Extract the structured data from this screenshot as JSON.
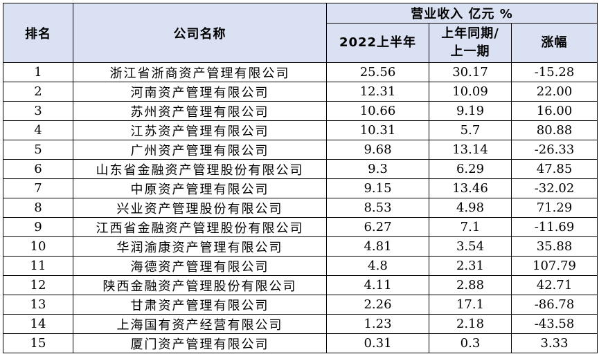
{
  "header": {
    "rank": "排名",
    "company": "公司名称",
    "revenue_group": "营业收入 亿元 %",
    "col_2022h1": "2022上半年",
    "col_prev_line1": "上年同期/",
    "col_prev_line2": "上一期",
    "col_change": "涨幅"
  },
  "rows": [
    {
      "rank": "1",
      "company": "浙江省浙商资产管理有限公司",
      "h1_2022": "25.56",
      "prev": "30.17",
      "change": "-15.28"
    },
    {
      "rank": "2",
      "company": "河南资产管理有限公司",
      "h1_2022": "12.31",
      "prev": "10.09",
      "change": "22.00"
    },
    {
      "rank": "3",
      "company": "苏州资产管理有限公司",
      "h1_2022": "10.66",
      "prev": "9.19",
      "change": "16.00"
    },
    {
      "rank": "4",
      "company": "江苏资产管理有限公司",
      "h1_2022": "10.31",
      "prev": "5.7",
      "change": "80.88"
    },
    {
      "rank": "5",
      "company": "广州资产管理有限公司",
      "h1_2022": "9.68",
      "prev": "13.14",
      "change": "-26.33"
    },
    {
      "rank": "6",
      "company": "山东省金融资产管理股份有限公司",
      "h1_2022": "9.3",
      "prev": "6.29",
      "change": "47.85"
    },
    {
      "rank": "7",
      "company": "中原资产管理有限公司",
      "h1_2022": "9.15",
      "prev": "13.46",
      "change": "-32.02"
    },
    {
      "rank": "8",
      "company": "兴业资产管理股份有限公司",
      "h1_2022": "8.53",
      "prev": "4.98",
      "change": "71.29"
    },
    {
      "rank": "9",
      "company": "江西省金融资产管理股份有限公司",
      "h1_2022": "6.27",
      "prev": "7.1",
      "change": "-11.69"
    },
    {
      "rank": "10",
      "company": "华润渝康资产管理有限公司",
      "h1_2022": "4.81",
      "prev": "3.54",
      "change": "35.88"
    },
    {
      "rank": "11",
      "company": "海德资产管理有限公司",
      "h1_2022": "4.8",
      "prev": "2.31",
      "change": "107.79"
    },
    {
      "rank": "12",
      "company": "陕西金融资产管理股份有限公司",
      "h1_2022": "4.11",
      "prev": "2.88",
      "change": "42.71"
    },
    {
      "rank": "13",
      "company": "甘肃资产管理有限公司",
      "h1_2022": "2.26",
      "prev": "17.1",
      "change": "-86.78"
    },
    {
      "rank": "14",
      "company": "上海国有资产经营有限公司",
      "h1_2022": "1.23",
      "prev": "2.18",
      "change": "-43.58"
    },
    {
      "rank": "15",
      "company": "厦门资产管理有限公司",
      "h1_2022": "0.31",
      "prev": "0.3",
      "change": "3.33"
    }
  ]
}
